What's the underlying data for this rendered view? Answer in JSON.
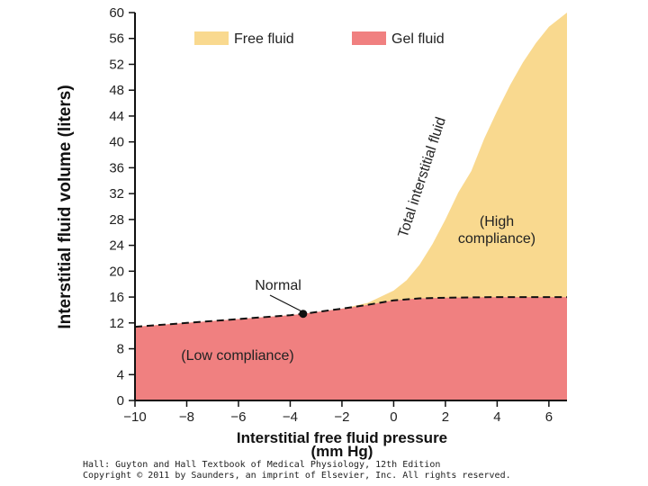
{
  "chart_data": {
    "type": "area",
    "xlabel_line1": "Interstitial free fluid pressure",
    "xlabel_line2": "(mm Hg)",
    "ylabel": "Interstitial fluid volume (liters)",
    "xlim": [
      -10,
      6.7
    ],
    "ylim": [
      0,
      60
    ],
    "x_ticks": [
      -10,
      -8,
      -6,
      -4,
      -2,
      0,
      2,
      4,
      6
    ],
    "x_tick_labels": [
      "−10",
      "−8",
      "−6",
      "−4",
      "−2",
      "0",
      "2",
      "4",
      "6"
    ],
    "y_ticks": [
      0,
      4,
      8,
      12,
      16,
      20,
      24,
      28,
      32,
      36,
      40,
      44,
      48,
      52,
      56,
      60
    ],
    "y_tick_labels": [
      "0",
      "4",
      "8",
      "12",
      "16",
      "20",
      "24",
      "28",
      "32",
      "36",
      "40",
      "44",
      "48",
      "52",
      "56",
      "60"
    ],
    "legend": [
      {
        "label": "Free fluid",
        "color": "#f9d98f"
      },
      {
        "label": "Gel fluid",
        "color": "#f08080"
      }
    ],
    "series": [
      {
        "name": "Gel fluid",
        "color": "#f08080",
        "x": [
          -10,
          -8,
          -6,
          -4,
          -3.5,
          -2,
          -1,
          0,
          1,
          2,
          4,
          6,
          6.7
        ],
        "y": [
          11.4,
          12.0,
          12.6,
          13.2,
          13.4,
          14.2,
          14.8,
          15.5,
          15.8,
          15.9,
          16.0,
          16.0,
          16.0
        ]
      },
      {
        "name": "Total interstitial fluid",
        "color": "#f9d98f",
        "x": [
          -10,
          -8,
          -6,
          -4,
          -3.5,
          -2,
          -1,
          0,
          0.5,
          1,
          1.5,
          2,
          2.5,
          3,
          3.5,
          4,
          4.5,
          5,
          5.5,
          6,
          6.7
        ],
        "y": [
          11.4,
          12.0,
          12.6,
          13.2,
          13.4,
          14.2,
          15.1,
          17.0,
          18.6,
          21.0,
          24.2,
          28.0,
          32.2,
          35.5,
          40.5,
          44.8,
          48.8,
          52.3,
          55.3,
          57.8,
          60.0
        ]
      }
    ],
    "normal_point": {
      "x": -3.5,
      "y": 13.4,
      "label": "Normal"
    },
    "annotations": {
      "curve_label": "Total interstitial fluid",
      "high_compliance_1": "(High",
      "high_compliance_2": "compliance)",
      "low_compliance": "(Low compliance)"
    },
    "grid": false
  },
  "credits": {
    "line1": "Hall: Guyton and Hall Textbook of Medical Physiology, 12th Edition",
    "line2": "Copyright © 2011 by Saunders, an imprint of Elsevier, Inc. All rights reserved."
  }
}
